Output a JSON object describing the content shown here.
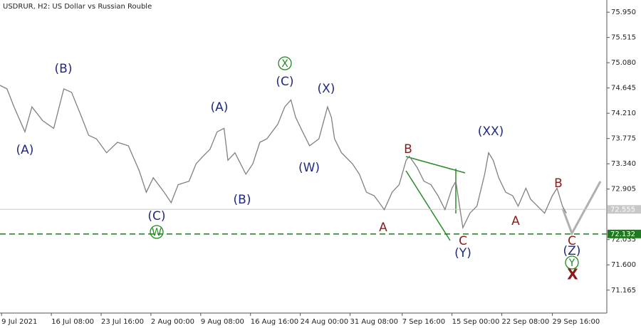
{
  "chart_data": {
    "type": "line",
    "title": "USDRUR, H2:  US Dollar vs Russian Rouble",
    "color": "#808080",
    "x": [
      0,
      9,
      18,
      32,
      41,
      55,
      69,
      82,
      92,
      105,
      114,
      124,
      137,
      151,
      165,
      179,
      188,
      197,
      211,
      220,
      229,
      243,
      252,
      261,
      270,
      279,
      288,
      293,
      302,
      316,
      325,
      334,
      343,
      357,
      366,
      374,
      380,
      389,
      398,
      410,
      421,
      426,
      430,
      439,
      453,
      462,
      471,
      481,
      494,
      504,
      513,
      522,
      526,
      536,
      545,
      554,
      563,
      572,
      581,
      586,
      590,
      595,
      604,
      613,
      623,
      628,
      634,
      641,
      650,
      659,
      666,
      676,
      682,
      691,
      700,
      710,
      716,
      723,
      728
    ],
    "values": [
      74.69,
      74.63,
      74.32,
      73.89,
      74.32,
      74.08,
      73.95,
      74.63,
      74.57,
      74.14,
      73.83,
      73.77,
      73.53,
      73.71,
      73.65,
      73.22,
      72.85,
      73.1,
      72.85,
      72.67,
      72.98,
      73.04,
      73.34,
      73.47,
      73.59,
      73.89,
      73.95,
      73.4,
      73.53,
      73.16,
      73.34,
      73.71,
      73.77,
      74.02,
      74.32,
      74.44,
      74.14,
      73.89,
      73.65,
      73.77,
      74.32,
      74.14,
      73.77,
      73.53,
      73.34,
      73.16,
      72.85,
      72.79,
      72.55,
      72.85,
      72.98,
      73.4,
      73.47,
      73.28,
      73.04,
      72.98,
      72.79,
      72.55,
      72.92,
      73.04,
      72.67,
      72.24,
      72.49,
      72.61,
      73.16,
      73.53,
      73.4,
      73.1,
      72.85,
      72.79,
      72.61,
      72.92,
      72.73,
      72.61,
      72.49,
      72.79,
      72.92,
      72.61,
      72.49
    ],
    "xlim": [
      0,
      780
    ],
    "xticks": [
      {
        "value": 2,
        "label": "9 Jul 2021"
      },
      {
        "value": 66,
        "label": "16 Jul 08:00"
      },
      {
        "value": 130,
        "label": "23 Jul 16:00"
      },
      {
        "value": 194,
        "label": "2 Aug 00:00"
      },
      {
        "value": 258,
        "label": "9 Aug 08:00"
      },
      {
        "value": 322,
        "label": "16 Aug 16:00"
      },
      {
        "value": 386,
        "label": "24 Aug 00:00"
      },
      {
        "value": 450,
        "label": "31 Aug 08:00"
      },
      {
        "value": 517,
        "label": "7 Sep 16:00"
      },
      {
        "value": 581,
        "label": "15 Sep 00:00"
      },
      {
        "value": 645,
        "label": "22 Sep 08:00"
      },
      {
        "value": 710,
        "label": "29 Sep 16:00"
      }
    ],
    "ylim": [
      70.77,
      76.16
    ],
    "yticks": [
      {
        "value": 75.95,
        "label": "75.950"
      },
      {
        "value": 75.515,
        "label": "75.515"
      },
      {
        "value": 75.08,
        "label": "75.080"
      },
      {
        "value": 74.645,
        "label": "74.645"
      },
      {
        "value": 74.21,
        "label": "74.210"
      },
      {
        "value": 73.775,
        "label": "73.775"
      },
      {
        "value": 73.34,
        "label": "73.340"
      },
      {
        "value": 72.905,
        "label": "72.905"
      },
      {
        "value": 72.035,
        "label": "72.035"
      },
      {
        "value": 71.6,
        "label": "71.600"
      },
      {
        "value": 71.165,
        "label": "71.165"
      }
    ],
    "hlines": [
      {
        "value": 72.555,
        "color": "#c8c8c8",
        "dashed": false
      },
      {
        "value": 72.132,
        "color": "#1e7a1e",
        "dashed": true
      }
    ],
    "annotations": [
      {
        "text": "(A)",
        "color": "#1f2a80",
        "circled": false
      },
      {
        "text": "(B)",
        "color": "#1f2a80",
        "circled": false
      },
      {
        "text": "(C)",
        "color": "#1f2a80",
        "circled": false
      },
      {
        "text": "W",
        "color": "#1e8a1e",
        "circled": true
      },
      {
        "text": "(A)",
        "color": "#1f2a80",
        "circled": false
      },
      {
        "text": "(B)",
        "color": "#1f2a80",
        "circled": false
      },
      {
        "text": "(C)",
        "color": "#1f2a80",
        "circled": false
      },
      {
        "text": "X",
        "color": "#1e8a1e",
        "circled": true
      },
      {
        "text": "(X)",
        "color": "#1f2a80",
        "circled": false
      },
      {
        "text": "(W)",
        "color": "#1f2a80",
        "circled": false
      },
      {
        "text": "B",
        "color": "#8b1a1a",
        "circled": false
      },
      {
        "text": "A",
        "color": "#8b1a1a",
        "circled": false
      },
      {
        "text": "C",
        "color": "#8b1a1a",
        "circled": false
      },
      {
        "text": "(Y)",
        "color": "#1f2a80",
        "circled": false
      },
      {
        "text": "(XX)",
        "color": "#1f2a80",
        "circled": false
      },
      {
        "text": "A",
        "color": "#8b1a1a",
        "circled": false
      },
      {
        "text": "B",
        "color": "#8b1a1a",
        "circled": false
      },
      {
        "text": "C",
        "color": "#8b1a1a",
        "circled": false
      },
      {
        "text": "(Z)",
        "color": "#1f2a80",
        "circled": false
      },
      {
        "text": "Y",
        "color": "#1e8a1e",
        "circled": true
      },
      {
        "text": "X",
        "color": "#8b1a1a",
        "circled": false
      }
    ]
  }
}
